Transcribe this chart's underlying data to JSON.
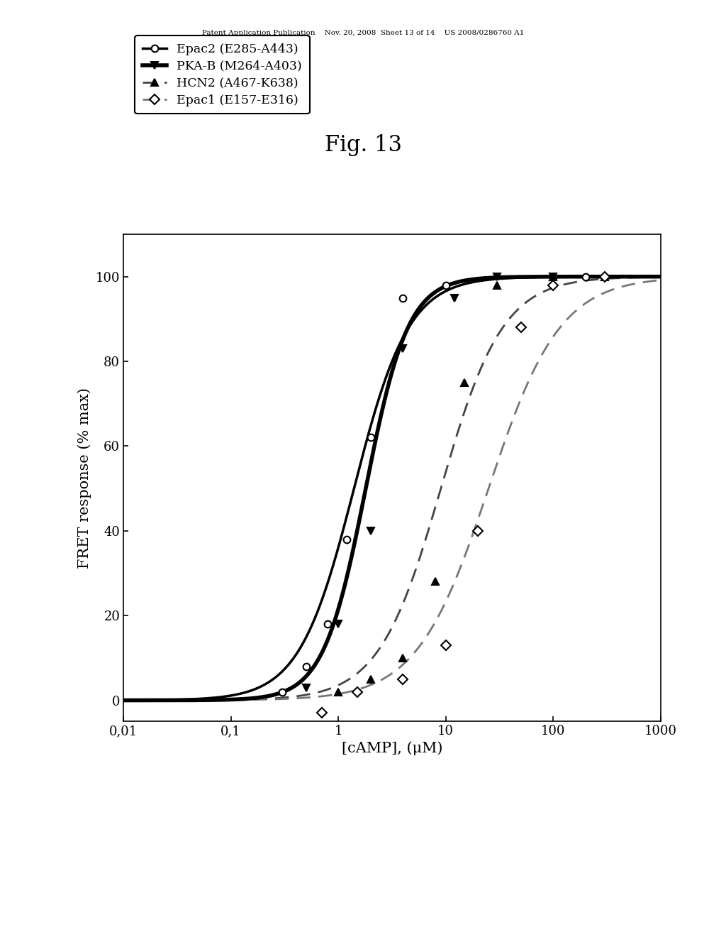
{
  "title": "Fig. 13",
  "xlabel": "[cAMP], (μM)",
  "ylabel": "FRET response (% max)",
  "ylim": [
    -5,
    110
  ],
  "yticks": [
    0,
    20,
    40,
    60,
    80,
    100
  ],
  "xtick_labels": [
    "0,01",
    "0,1",
    "1",
    "10",
    "100",
    "1000"
  ],
  "xtick_vals": [
    0.01,
    0.1,
    1,
    10,
    100,
    1000
  ],
  "series": [
    {
      "name": "Epac2 (E285-A443)",
      "ec50": 1.4,
      "hill": 1.7,
      "color": "#000000",
      "linestyle": "solid",
      "linewidth": 2.5,
      "marker": "o",
      "markerfacecolor": "white",
      "markeredgecolor": "black",
      "markersize": 7,
      "data_x": [
        0.3,
        0.5,
        0.8,
        1.2,
        2.0,
        4.0,
        10.0,
        100.0,
        200.0
      ],
      "data_y": [
        2,
        8,
        18,
        38,
        62,
        95,
        98,
        100,
        100
      ]
    },
    {
      "name": "PKA-B (M264-A403)",
      "ec50": 1.8,
      "hill": 2.2,
      "color": "#000000",
      "linestyle": "solid",
      "linewidth": 4.0,
      "marker": "v",
      "markerfacecolor": "black",
      "markeredgecolor": "black",
      "markersize": 7,
      "data_x": [
        0.5,
        1.0,
        2.0,
        4.0,
        12.0,
        30.0,
        100.0
      ],
      "data_y": [
        3,
        18,
        40,
        83,
        95,
        100,
        100
      ]
    },
    {
      "name": "HCN2 (A467-K638)",
      "ec50": 9.0,
      "hill": 1.5,
      "color": "#444444",
      "linestyle": "dashed",
      "linewidth": 2.0,
      "marker": "^",
      "markerfacecolor": "black",
      "markeredgecolor": "black",
      "markersize": 7,
      "data_x": [
        1.0,
        2.0,
        4.0,
        8.0,
        15.0,
        30.0,
        100.0,
        300.0
      ],
      "data_y": [
        2,
        5,
        10,
        28,
        75,
        98,
        100,
        100
      ]
    },
    {
      "name": "Epac1 (E157-E316)",
      "ec50": 25.0,
      "hill": 1.3,
      "color": "#777777",
      "linestyle": "dashed",
      "linewidth": 2.0,
      "marker": "D",
      "markerfacecolor": "white",
      "markeredgecolor": "black",
      "markersize": 7,
      "data_x": [
        0.7,
        1.5,
        4.0,
        10.0,
        20.0,
        50.0,
        100.0,
        300.0
      ],
      "data_y": [
        -3,
        2,
        5,
        13,
        40,
        88,
        98,
        100
      ]
    }
  ],
  "header_text": "Patent Application Publication    Nov. 20, 2008  Sheet 13 of 14    US 2008/0286760 A1",
  "background_color": "#ffffff",
  "fig_title_fontsize": 22,
  "axis_label_fontsize": 15,
  "tick_fontsize": 13,
  "legend_fontsize": 12.5
}
